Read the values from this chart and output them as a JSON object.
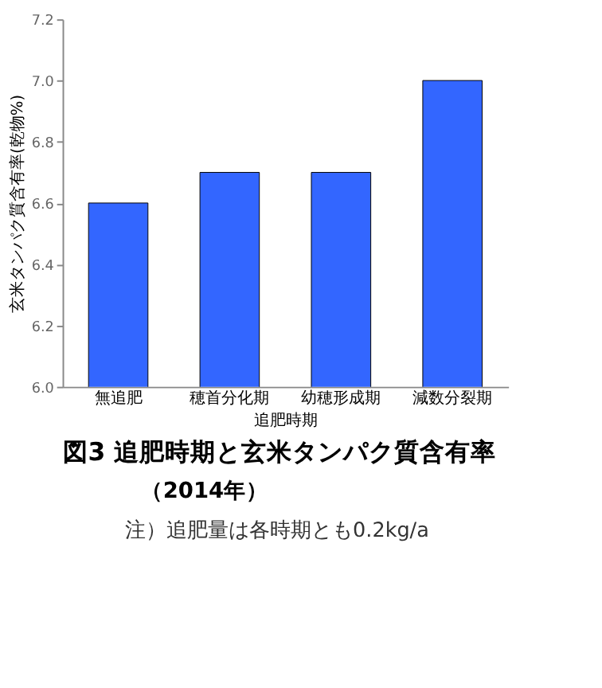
{
  "chart_data": {
    "type": "bar",
    "title": "図3 追肥時期と玄米タンパク質含有率",
    "subtitle": "（2014年）",
    "xlabel": "追肥時期",
    "ylabel": "玄米タンパク質含有率(乾物%)",
    "annotations": [
      "注）追肥量は各時期とも0.2kg/a"
    ],
    "categories": [
      "無追肥",
      "穂首分化期",
      "幼穂形成期",
      "減数分裂期"
    ],
    "values": [
      6.6,
      6.7,
      6.7,
      7.0
    ],
    "color": "#3366ff",
    "ylim": [
      6.0,
      7.2
    ],
    "yticks": [
      {
        "value": 6.0,
        "label": "6.0"
      },
      {
        "value": 6.2,
        "label": "6.2"
      },
      {
        "value": 6.4,
        "label": "6.4"
      },
      {
        "value": 6.6,
        "label": "6.6"
      },
      {
        "value": 6.8,
        "label": "6.8"
      },
      {
        "value": 7.0,
        "label": "7.0"
      },
      {
        "value": 7.2,
        "label": "7.2"
      }
    ],
    "grid": false
  }
}
